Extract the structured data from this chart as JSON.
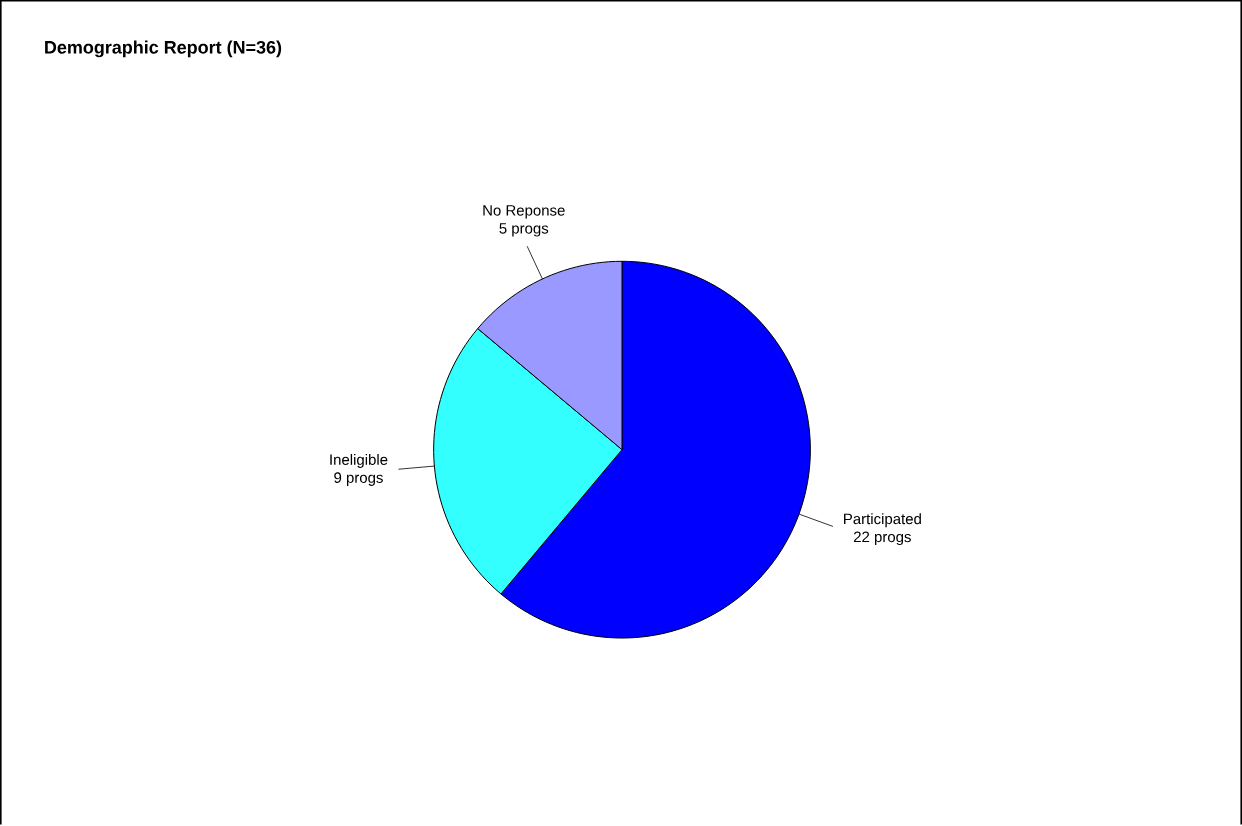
{
  "chart_data": {
    "type": "pie",
    "title": "Demographic Report (N=36)",
    "categories": [
      "Participated",
      "Ineligible",
      "No Reponse"
    ],
    "values": [
      22,
      9,
      5
    ],
    "colors": [
      "#0000ff",
      "#33ffff",
      "#9999ff"
    ],
    "value_labels": [
      "22 progs",
      "9 progs",
      "5 progs"
    ]
  }
}
